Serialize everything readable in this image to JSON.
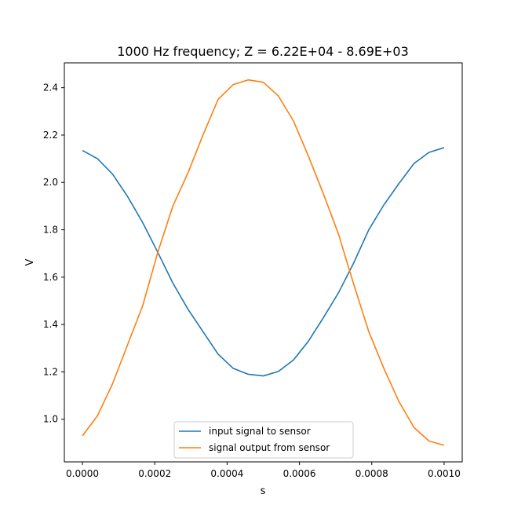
{
  "chart_data": {
    "type": "line",
    "title": "1000 Hz frequency; Z = 6.22E+04 - 8.69E+03",
    "xlabel": "s",
    "ylabel": "V",
    "xlim": [
      -5e-05,
      0.00105
    ],
    "ylim": [
      0.82,
      2.505
    ],
    "x_ticks": [
      0.0,
      0.0002,
      0.0004,
      0.0006,
      0.0008,
      0.001
    ],
    "x_tick_labels": [
      "0.0000",
      "0.0002",
      "0.0004",
      "0.0006",
      "0.0008",
      "0.0010"
    ],
    "y_ticks": [
      1.0,
      1.2,
      1.4,
      1.6,
      1.8,
      2.0,
      2.2,
      2.4
    ],
    "y_tick_labels": [
      "1.0",
      "1.2",
      "1.4",
      "1.6",
      "1.8",
      "2.0",
      "2.2",
      "2.4"
    ],
    "grid": false,
    "legend_position": "bottom-center",
    "x": [
      0.0,
      4.17e-05,
      8.33e-05,
      0.000125,
      0.0001667,
      0.0002083,
      0.00025,
      0.0002917,
      0.0003333,
      0.000375,
      0.0004167,
      0.0004583,
      0.0005,
      0.0005417,
      0.0005833,
      0.000625,
      0.0006667,
      0.0007083,
      0.00075,
      0.0007917,
      0.0008333,
      0.000875,
      0.0009167,
      0.0009583,
      0.001
    ],
    "series": [
      {
        "name": "input signal to sensor",
        "color": "#1f77b4",
        "values": [
          2.135,
          2.1,
          2.035,
          1.94,
          1.83,
          1.705,
          1.575,
          1.465,
          1.37,
          1.275,
          1.215,
          1.19,
          1.183,
          1.202,
          1.25,
          1.33,
          1.43,
          1.535,
          1.66,
          1.8,
          1.905,
          1.995,
          2.08,
          2.127,
          2.147
        ]
      },
      {
        "name": "signal output from sensor",
        "color": "#ff7f0e",
        "values": [
          0.93,
          1.015,
          1.15,
          1.315,
          1.48,
          1.705,
          1.9,
          2.04,
          2.2,
          2.35,
          2.413,
          2.433,
          2.423,
          2.365,
          2.26,
          2.11,
          1.95,
          1.78,
          1.57,
          1.37,
          1.215,
          1.075,
          0.965,
          0.908,
          0.89
        ]
      }
    ]
  }
}
